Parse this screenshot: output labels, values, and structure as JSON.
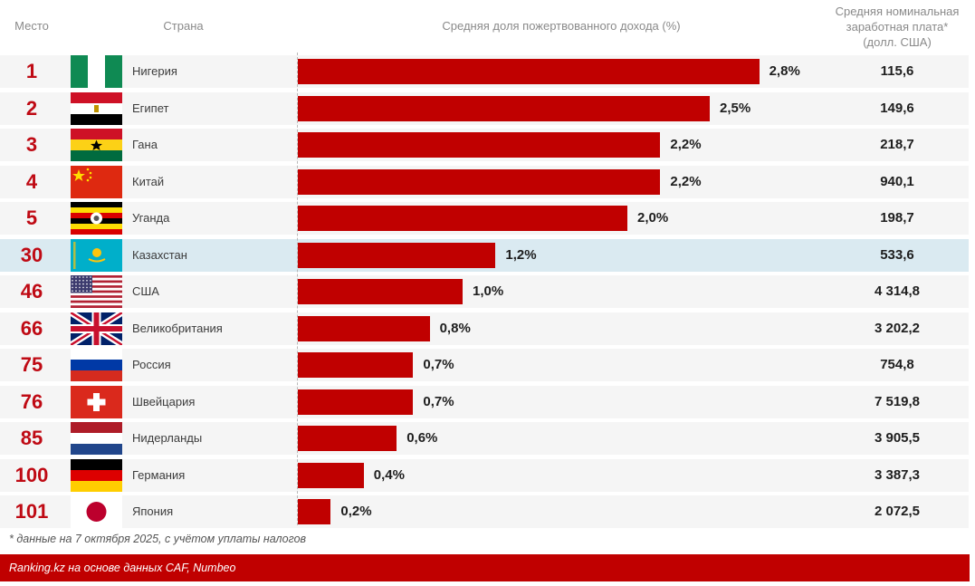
{
  "header": {
    "rank": "Место",
    "country": "Страна",
    "share": "Средняя доля пожертвованного дохода (%)",
    "wage_line1": "Средняя номинальная",
    "wage_line2": "заработная плата*",
    "wage_line3": "(долл. США)"
  },
  "colors": {
    "bar": "#c00000",
    "rank": "#bf0a14",
    "row_bg": "#f5f5f5",
    "highlight_bg": "#daeaf1",
    "footer_bg": "#c00000"
  },
  "chart_data": {
    "type": "bar",
    "orientation": "horizontal",
    "title": "Средняя доля пожертвованного дохода (%)",
    "xlabel": "Средняя доля пожертвованного дохода (%)",
    "ylabel": "Страна",
    "xlim": [
      0,
      2.8
    ],
    "grid": false,
    "legend": "none",
    "categories": [
      "Нигерия",
      "Египет",
      "Гана",
      "Китай",
      "Уганда",
      "Казахстан",
      "США",
      "Великобритания",
      "Россия",
      "Швейцария",
      "Нидерланды",
      "Германия",
      "Япония"
    ],
    "values": [
      2.8,
      2.5,
      2.2,
      2.2,
      2.0,
      1.2,
      1.0,
      0.8,
      0.7,
      0.7,
      0.6,
      0.4,
      0.2
    ],
    "highlighted": "Казахстан"
  },
  "rows": [
    {
      "rank": "1",
      "country": "Нигерия",
      "flag": "nigeria-flag-icon",
      "share": 2.8,
      "share_label": "2,8%",
      "wage": "115,6",
      "highlight": false
    },
    {
      "rank": "2",
      "country": "Египет",
      "flag": "egypt-flag-icon",
      "share": 2.5,
      "share_label": "2,5%",
      "wage": "149,6",
      "highlight": false
    },
    {
      "rank": "3",
      "country": "Гана",
      "flag": "ghana-flag-icon",
      "share": 2.2,
      "share_label": "2,2%",
      "wage": "218,7",
      "highlight": false
    },
    {
      "rank": "4",
      "country": "Китай",
      "flag": "china-flag-icon",
      "share": 2.2,
      "share_label": "2,2%",
      "wage": "940,1",
      "highlight": false
    },
    {
      "rank": "5",
      "country": "Уганда",
      "flag": "uganda-flag-icon",
      "share": 2.0,
      "share_label": "2,0%",
      "wage": "198,7",
      "highlight": false
    },
    {
      "rank": "30",
      "country": "Казахстан",
      "flag": "kazakhstan-flag-icon",
      "share": 1.2,
      "share_label": "1,2%",
      "wage": "533,6",
      "highlight": true
    },
    {
      "rank": "46",
      "country": "США",
      "flag": "usa-flag-icon",
      "share": 1.0,
      "share_label": "1,0%",
      "wage": "4 314,8",
      "highlight": false
    },
    {
      "rank": "66",
      "country": "Великобритания",
      "flag": "uk-flag-icon",
      "share": 0.8,
      "share_label": "0,8%",
      "wage": "3 202,2",
      "highlight": false
    },
    {
      "rank": "75",
      "country": "Россия",
      "flag": "russia-flag-icon",
      "share": 0.7,
      "share_label": "0,7%",
      "wage": "754,8",
      "highlight": false
    },
    {
      "rank": "76",
      "country": "Швейцария",
      "flag": "switzerland-flag-icon",
      "share": 0.7,
      "share_label": "0,7%",
      "wage": "7 519,8",
      "highlight": false
    },
    {
      "rank": "85",
      "country": "Нидерланды",
      "flag": "netherlands-flag-icon",
      "share": 0.6,
      "share_label": "0,6%",
      "wage": "3 905,5",
      "highlight": false
    },
    {
      "rank": "100",
      "country": "Германия",
      "flag": "germany-flag-icon",
      "share": 0.4,
      "share_label": "0,4%",
      "wage": "3 387,3",
      "highlight": false
    },
    {
      "rank": "101",
      "country": "Япония",
      "flag": "japan-flag-icon",
      "share": 0.2,
      "share_label": "0,2%",
      "wage": "2 072,5",
      "highlight": false
    }
  ],
  "note": "* данные на 7 октября 2025, с учётом уплаты налогов",
  "source": "Ranking.kz на основе данных CAF, Numbeo"
}
